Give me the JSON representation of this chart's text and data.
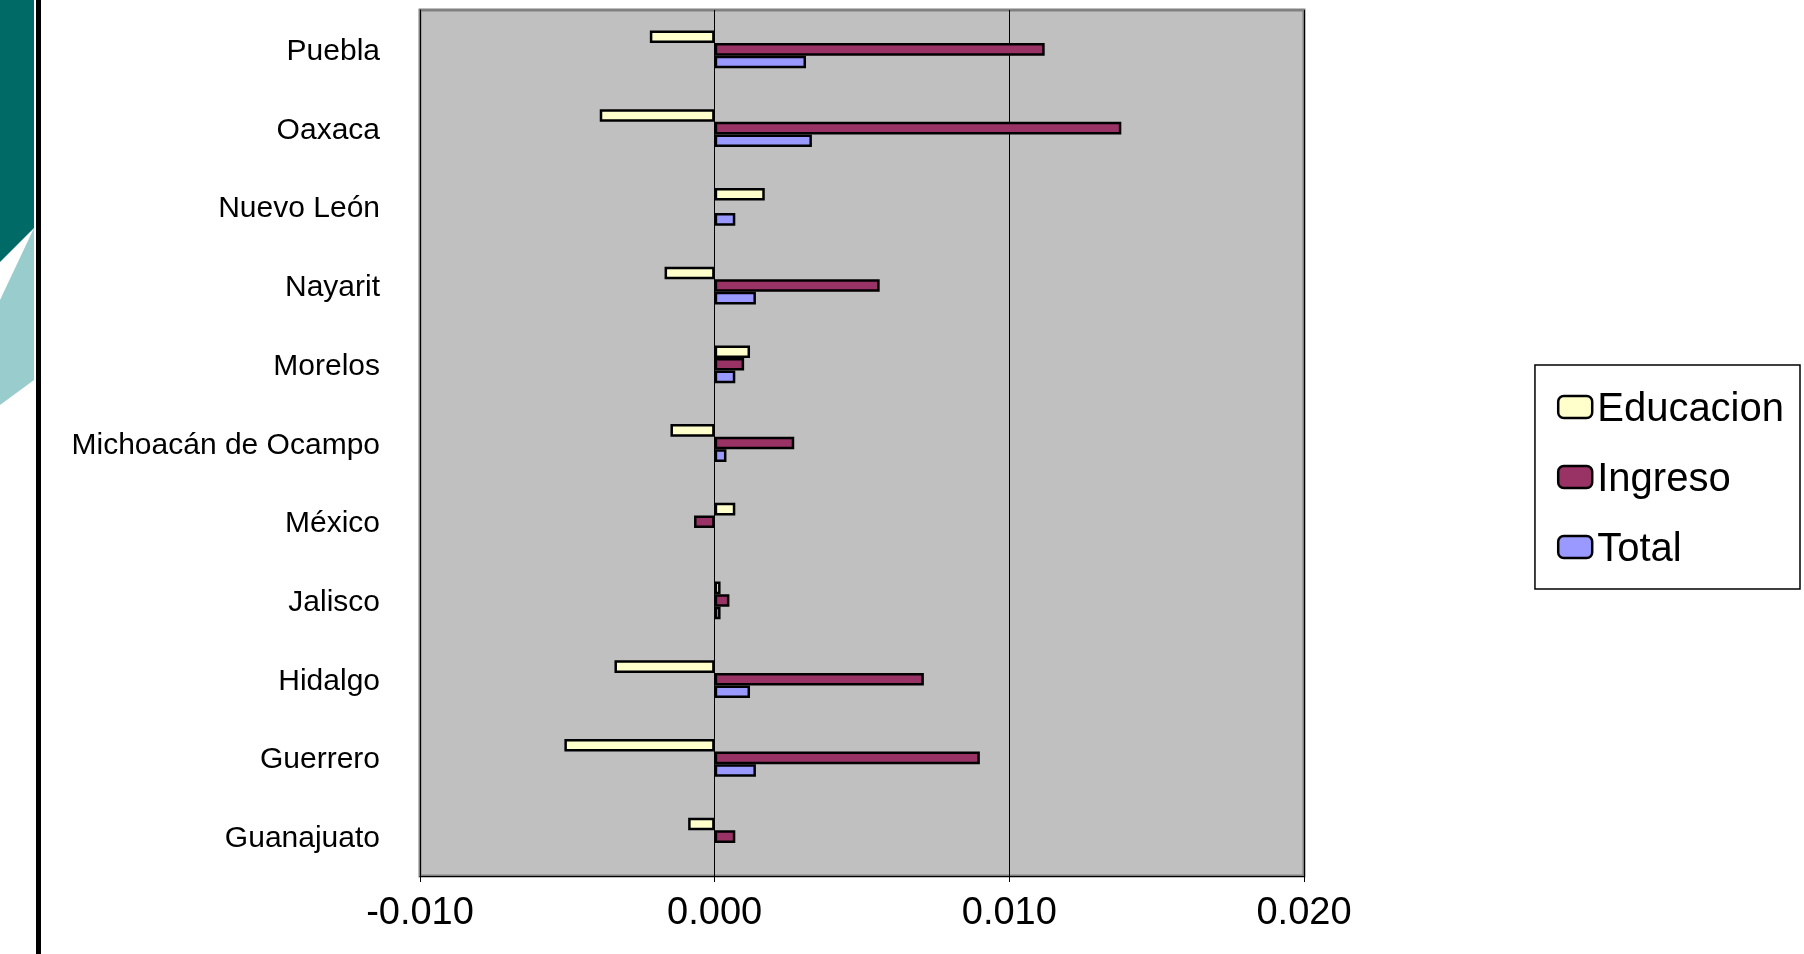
{
  "chart_data": {
    "type": "bar",
    "orientation": "horizontal",
    "categories": [
      "Puebla",
      "Oaxaca",
      "Nuevo León",
      "Nayarit",
      "Morelos",
      "Michoacán de Ocampo",
      "México",
      "Jalisco",
      "Hidalgo",
      "Guerrero",
      "Guanajuato"
    ],
    "series": [
      {
        "name": "Educacion",
        "color": "#ffffcc",
        "values": [
          -0.0022,
          -0.0039,
          0.0017,
          -0.0017,
          0.0012,
          -0.0015,
          0.0007,
          0.0002,
          -0.0034,
          -0.0051,
          -0.0009
        ]
      },
      {
        "name": "Ingreso",
        "color": "#993366",
        "values": [
          0.0112,
          0.0138,
          null,
          0.0056,
          0.001,
          0.0027,
          -0.0007,
          0.0005,
          0.0071,
          0.009,
          0.0007
        ]
      },
      {
        "name": "Total",
        "color": "#9999ff",
        "values": [
          0.0031,
          0.0033,
          0.0007,
          0.0014,
          0.0007,
          0.0004,
          null,
          0.0002,
          0.0012,
          0.0014,
          null
        ]
      }
    ],
    "xlim": [
      -0.01,
      0.02
    ],
    "xticks": [
      {
        "value": -0.01,
        "label": "-0.010"
      },
      {
        "value": 0,
        "label": "0.000"
      },
      {
        "value": 0.01,
        "label": "0.010"
      },
      {
        "value": 0.02,
        "label": "0.020"
      }
    ],
    "grid": "x",
    "legend": "right"
  }
}
